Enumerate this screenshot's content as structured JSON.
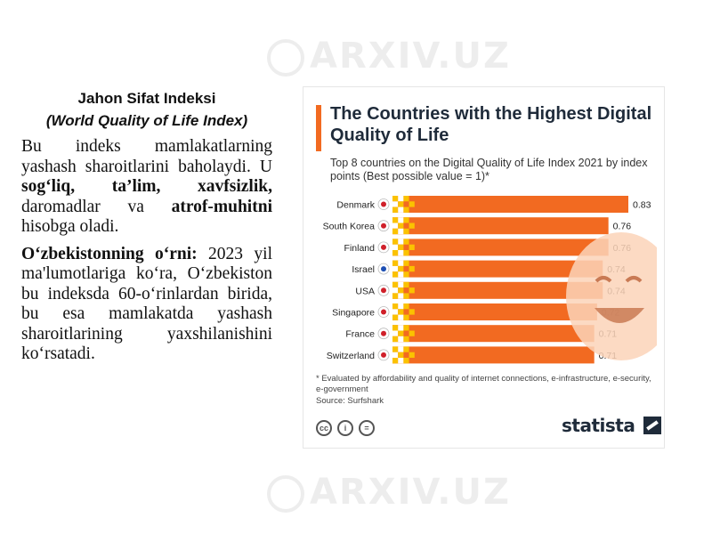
{
  "watermark": "ARXIV.UZ",
  "left": {
    "heading_line1": "Jahon Sifat Indeksi",
    "heading_line2": "(World Quality of Life Index)",
    "para1_pre": "Bu indeks mamlakatlarning yashash sharoitlarini baholaydi. U ",
    "para1_bold": "sog‘liq, ta’lim, xavfsizlik,",
    "para1_mid": " daromadlar va ",
    "para1_bold2": "atrof-muhitni",
    "para1_post": " hisobga oladi.",
    "para2_bold": "O‘zbekistonning o‘rni:",
    "para2_rest": " 2023 yil ma'lumotlariga ko‘ra, O‘zbekiston bu indeksda 60-o‘rinlardan birida, bu esa mamlakatda yashash sharoitlarining yaxshilanishini ko‘rsatadi."
  },
  "card": {
    "title": "The Countries with the Highest Digital Quality of Life",
    "subtitle": "Top 8 countries on the Digital Quality of Life Index 2021 by index points (Best possible value = 1)*",
    "footnote": "* Evaluated by affordability and quality of internet connections, e-infrastructure, e-security, e-government",
    "source": "Source: Surfshark",
    "cc_labels": [
      "cc",
      "i",
      "="
    ],
    "brand": "statista"
  },
  "colors": {
    "bar": "#f26a21",
    "bar_light": "#f7a35c",
    "pixel": "#fbc200",
    "title": "#1f2b3a"
  },
  "chart_data": {
    "type": "bar",
    "orientation": "horizontal",
    "categories": [
      "Denmark",
      "South Korea",
      "Finland",
      "Israel",
      "USA",
      "Singapore",
      "France",
      "Switzerland"
    ],
    "values": [
      0.83,
      0.76,
      0.76,
      0.74,
      0.74,
      0.72,
      0.71,
      0.71
    ],
    "value_labels": [
      "0.83",
      "0.76",
      "0.76",
      "0.74",
      "0.74",
      "0.72",
      "0.71",
      "0.71"
    ],
    "flag_icons": [
      "denmark-flag-icon",
      "south-korea-flag-icon",
      "finland-flag-icon",
      "israel-flag-icon",
      "usa-flag-icon",
      "singapore-flag-icon",
      "france-flag-icon",
      "switzerland-flag-icon"
    ],
    "xlim": [
      0,
      1
    ],
    "grid": false,
    "legend": "none"
  }
}
